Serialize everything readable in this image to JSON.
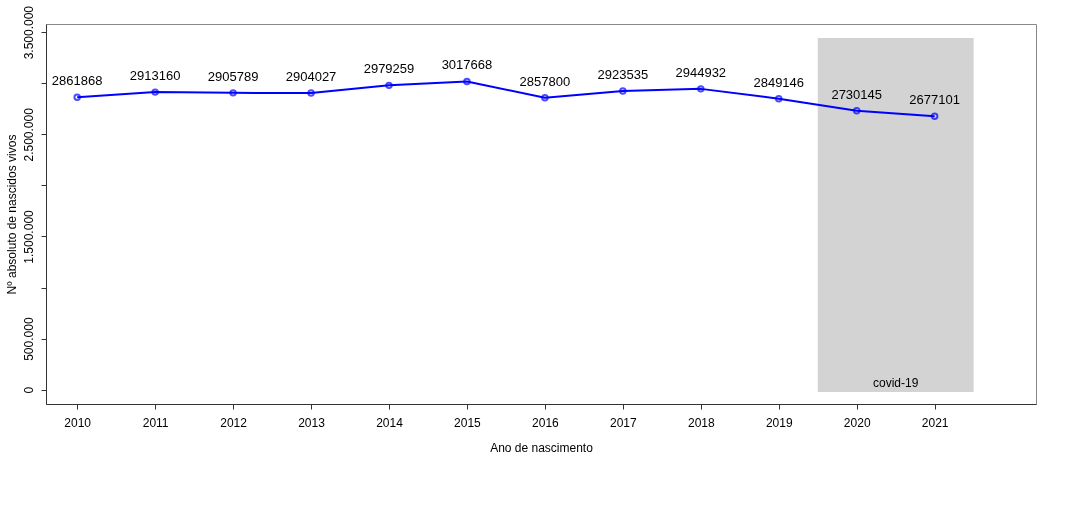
{
  "chart_data": {
    "type": "line",
    "xlabel": "Ano de nascimento",
    "ylabel": "Nº absoluto de nascidos vivos",
    "x": [
      2010,
      2011,
      2012,
      2013,
      2014,
      2015,
      2016,
      2017,
      2018,
      2019,
      2020,
      2021
    ],
    "series": [
      {
        "color": "#0000ff",
        "values": [
          2861868,
          2913160,
          2905789,
          2904027,
          2979259,
          3017668,
          2857800,
          2923535,
          2944932,
          2849146,
          2730145,
          2677101
        ]
      }
    ],
    "xlim": [
      2009.6,
      2022.3
    ],
    "xticks": [
      2010,
      2011,
      2012,
      2013,
      2014,
      2015,
      2016,
      2017,
      2018,
      2019,
      2020,
      2021
    ],
    "ylim": [
      -140000,
      3580000
    ],
    "yticks": [
      {
        "value": 0,
        "label": "0"
      },
      {
        "value": 500000,
        "label": "500.000"
      },
      {
        "value": 1000000,
        "label": null
      },
      {
        "value": 1500000,
        "label": "1.500.000"
      },
      {
        "value": 2000000,
        "label": null
      },
      {
        "value": 2500000,
        "label": "2.500.000"
      },
      {
        "value": 3000000,
        "label": null
      },
      {
        "value": 3500000,
        "label": "3.500.000"
      }
    ],
    "bands": [
      {
        "axis": "x",
        "from": 2019.5,
        "to": 2021.5,
        "label": "covid-19",
        "color": "#d3d3d3"
      }
    ],
    "data_labels": true,
    "marker": "circle",
    "grid": false,
    "line_style": "solid"
  }
}
